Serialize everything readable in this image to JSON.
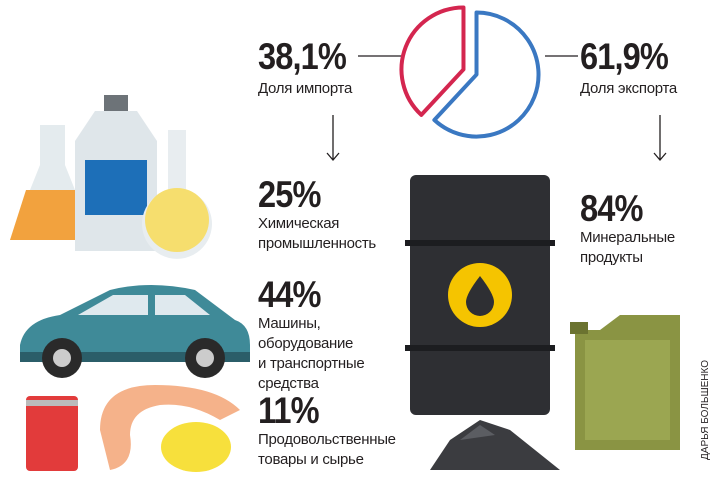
{
  "chart_data": {
    "type": "pie",
    "categories": [
      "Доля импорта",
      "Доля экспорта"
    ],
    "values": [
      38.1,
      61.9
    ],
    "value_labels": [
      "38,1%",
      "61,9%"
    ],
    "colors": [
      "#d4264f",
      "#3a78c2"
    ]
  },
  "import_items": [
    {
      "share": "25%",
      "label": "Химическая\nпромышленность"
    },
    {
      "share": "44%",
      "label": "Машины,\nоборудование\nи транспортные\nсредства"
    },
    {
      "share": "11%",
      "label": "Продовольственные\nтовары и сырье"
    }
  ],
  "export_items": [
    {
      "share": "84%",
      "label": "Минеральные\nпродукты"
    }
  ],
  "credit": "ДАРЬЯ БОЛЬШЕНКО"
}
